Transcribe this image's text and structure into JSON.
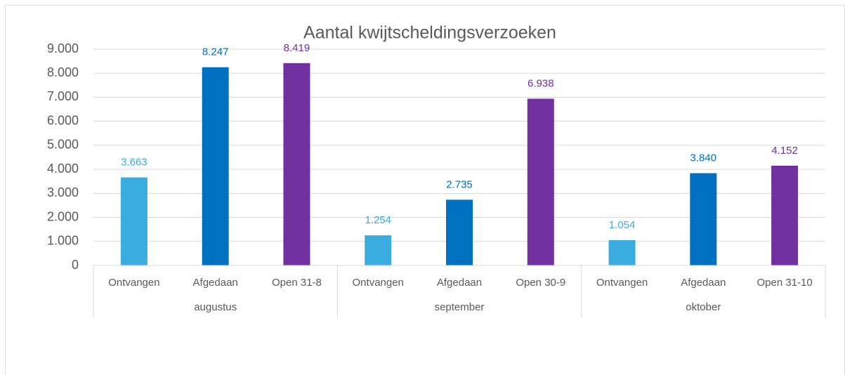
{
  "chart_data": {
    "type": "bar",
    "title": "Aantal kwijtscheldingsverzoeken",
    "colors": [
      "#3aace0",
      "#0070c0",
      "#7030a0"
    ],
    "groups": [
      {
        "name": "augustus",
        "categories": [
          "Ontvangen",
          "Afgedaan",
          "Open 31-8"
        ],
        "values": [
          3663,
          8247,
          8419
        ],
        "value_labels": [
          "3.663",
          "8.247",
          "8.419"
        ]
      },
      {
        "name": "september",
        "categories": [
          "Ontvangen",
          "Afgedaan",
          "Open 30-9"
        ],
        "values": [
          1254,
          2735,
          6938
        ],
        "value_labels": [
          "1.254",
          "2.735",
          "6.938"
        ]
      },
      {
        "name": "oktober",
        "categories": [
          "Ontvangen",
          "Afgedaan",
          "Open 31-10"
        ],
        "values": [
          1054,
          3840,
          4152
        ],
        "value_labels": [
          "1.054",
          "3.840",
          "4.152"
        ]
      }
    ],
    "ylim": [
      0,
      9000
    ],
    "yticks": [
      0,
      {
        "value": 1000,
        "label": "1.000"
      },
      {
        "value": 2000,
        "label": "2.000"
      },
      {
        "value": 3000,
        "label": "3.000"
      },
      {
        "value": 4000,
        "label": "4.000"
      },
      {
        "value": 5000,
        "label": "5.000"
      },
      {
        "value": 6000,
        "label": "6.000"
      },
      {
        "value": 7000,
        "label": "7.000"
      },
      {
        "value": 8000,
        "label": "8.000"
      },
      {
        "value": 9000,
        "label": "9.000"
      }
    ],
    "grid": true
  }
}
